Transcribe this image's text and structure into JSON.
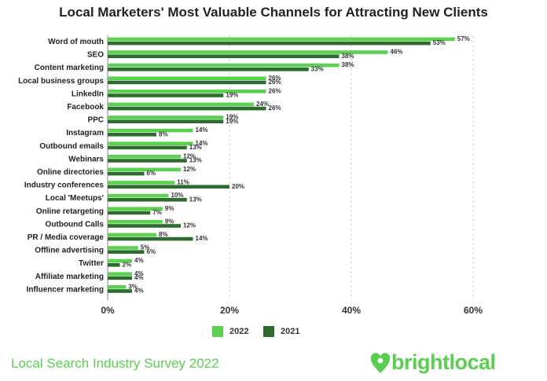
{
  "title": "Local Marketers' Most Valuable Channels for Attracting New Clients",
  "footer": "Local Search Industry Survey 2022",
  "brand": "brightlocal",
  "colors": {
    "series_2022": "#5bd14f",
    "series_2021": "#2e6b2e",
    "grid": "#cfcfcf",
    "brand": "#5acf4f"
  },
  "chart_data": {
    "type": "bar",
    "orientation": "horizontal",
    "categories": [
      "Word of mouth",
      "SEO",
      "Content marketing",
      "Local business groups",
      "LinkedIn",
      "Facebook",
      "PPC",
      "Instagram",
      "Outbound emails",
      "Webinars",
      "Online directories",
      "Industry conferences",
      "Local 'Meetups'",
      "Online retargeting",
      "Outbound Calls",
      "PR / Media coverage",
      "Offline advertising",
      "Twitter",
      "Affiliate marketing",
      "Influencer marketing"
    ],
    "series": [
      {
        "name": "2022",
        "values": [
          57,
          46,
          38,
          26,
          26,
          24,
          19,
          14,
          14,
          12,
          12,
          11,
          10,
          9,
          9,
          8,
          5,
          4,
          4,
          3
        ]
      },
      {
        "name": "2021",
        "values": [
          53,
          38,
          33,
          26,
          19,
          26,
          19,
          8,
          13,
          13,
          6,
          20,
          13,
          7,
          12,
          14,
          6,
          2,
          4,
          4
        ]
      }
    ],
    "xlim": [
      0,
      60
    ],
    "xticks": [
      "0%",
      "20%",
      "40%",
      "60%"
    ],
    "value_suffix": "%",
    "legend": "bottom",
    "grid": true
  }
}
